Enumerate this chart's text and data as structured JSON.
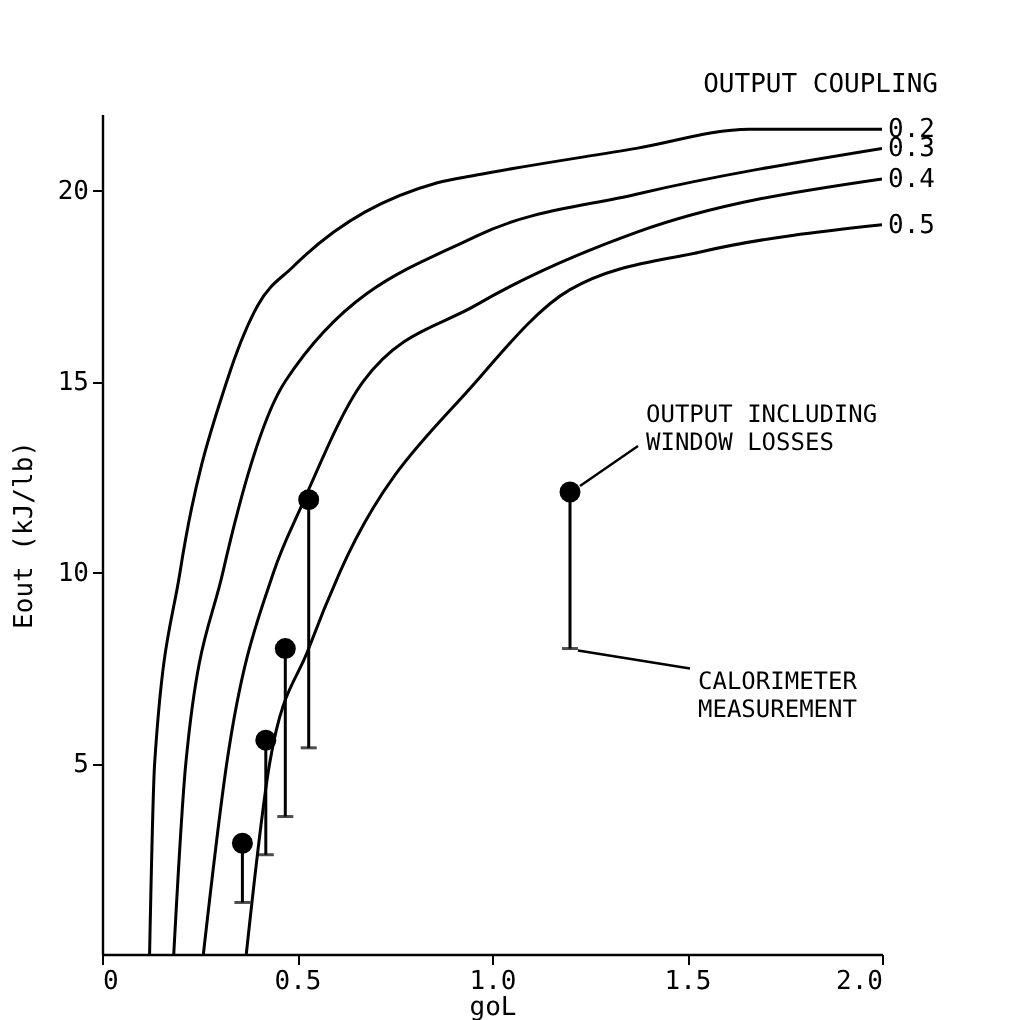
{
  "chart_data": {
    "type": "line",
    "xlabel": "goL",
    "ylabel": "Eout (kJ/lb)",
    "legend_title": "OUTPUT COUPLING",
    "xlim": [
      0,
      2.0
    ],
    "xticks": [
      0,
      0.5,
      {
        "value": 1.0,
        "label": "1.0"
      },
      1.5,
      {
        "value": 2.0,
        "label": "2.0"
      }
    ],
    "ylim": [
      0,
      22
    ],
    "yticks": [
      5,
      10,
      15,
      20
    ],
    "grid": false,
    "series": [
      {
        "name": "0.2",
        "color": "#000000",
        "x": [
          0.122,
          0.135,
          0.2,
          0.32,
          0.4,
          0.49,
          0.86,
          0.96,
          1.37,
          1.66,
          2.0
        ],
        "values": [
          0,
          5,
          10,
          15,
          17,
          18,
          20.2,
          20.4,
          21.1,
          21.6,
          21.6
        ]
      },
      {
        "name": "0.3",
        "color": "#000000",
        "x": [
          0.184,
          0.215,
          0.31,
          0.47,
          0.96,
          1.37,
          2.0
        ],
        "values": [
          0,
          5,
          10,
          15,
          18.8,
          19.9,
          21.1
        ]
      },
      {
        "name": "0.4",
        "color": "#000000",
        "x": [
          0.26,
          0.32,
          0.44,
          0.51,
          0.67,
          0.96,
          1.37,
          2.0
        ],
        "values": [
          0,
          5,
          10,
          11.7,
          15,
          17.0,
          18.9,
          20.3
        ]
      },
      {
        "name": "0.5",
        "color": "#000000",
        "x": [
          0.37,
          0.43,
          0.53,
          0.61,
          0.96,
          1.2,
          1.54,
          2.0
        ],
        "values": [
          0,
          5,
          8,
          10,
          15.0,
          17.4,
          18.4,
          19.1
        ]
      },
      {
        "type": "scatter",
        "color": "#000000",
        "marker": "circle",
        "x": [
          0.36,
          0.42,
          0.47,
          0.53
        ],
        "values": [
          2.9,
          5.6,
          8.0,
          11.9
        ],
        "errors": [
          [
            1.35,
            2.9
          ],
          [
            2.6,
            5.6
          ],
          [
            3.6,
            8.0
          ],
          [
            5.4,
            11.9
          ]
        ]
      },
      {
        "type": "scatter",
        "color": "#000000",
        "marker": "circle",
        "x": [
          1.2
        ],
        "values": [
          12.1
        ],
        "errors": [
          [
            8.0,
            12.1
          ]
        ]
      }
    ],
    "annotations": [
      {
        "text": "OUTPUT INCLUDING WINDOW LOSSES",
        "x": 1.2,
        "y": 12.1
      },
      {
        "text": "CALORIMETER MEASUREMENT",
        "x": 1.2,
        "y": 8.0
      }
    ]
  }
}
